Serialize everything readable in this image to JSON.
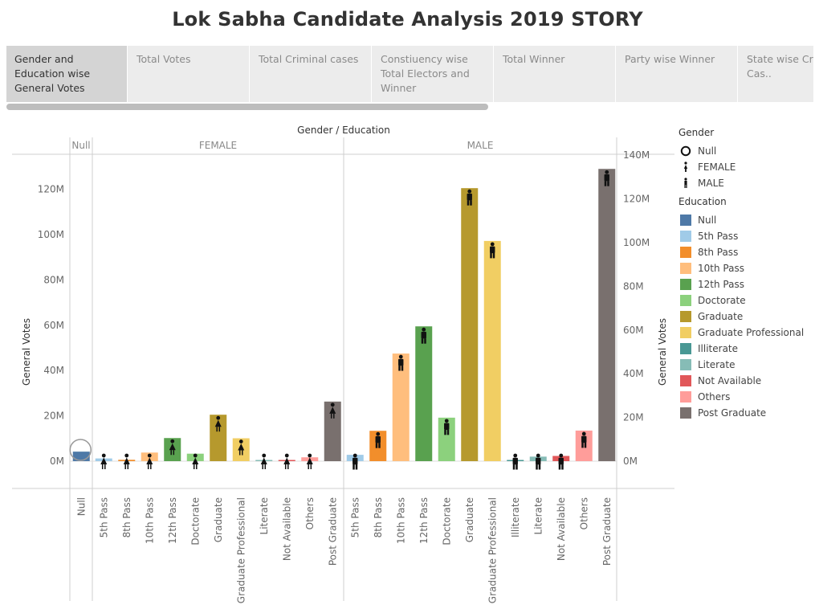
{
  "title": "Lok Sabha Candidate Analysis 2019  STORY",
  "tabs": [
    {
      "label": "Gender and Education wise General Votes",
      "active": true
    },
    {
      "label": "Total Votes",
      "active": false
    },
    {
      "label": "Total Criminal cases",
      "active": false
    },
    {
      "label": "Constiuency wise Total Electors and Winner",
      "active": false
    },
    {
      "label": "Total Winner",
      "active": false
    },
    {
      "label": "Party wise Winner",
      "active": false
    },
    {
      "label": "State wise Criminal Cas..",
      "active": false
    }
  ],
  "legend": {
    "gender_title": "Gender",
    "gender_items": [
      {
        "label": "Null",
        "icon": "circle-icon"
      },
      {
        "label": "FEMALE",
        "icon": "female-icon"
      },
      {
        "label": "MALE",
        "icon": "male-icon"
      }
    ],
    "education_title": "Education",
    "education_items": [
      {
        "label": "Null",
        "color": "#4e79a7"
      },
      {
        "label": "5th Pass",
        "color": "#a0cbe8"
      },
      {
        "label": "8th Pass",
        "color": "#f28e2b"
      },
      {
        "label": "10th Pass",
        "color": "#ffbe7d"
      },
      {
        "label": "12th Pass",
        "color": "#59a14f"
      },
      {
        "label": "Doctorate",
        "color": "#8cd17d"
      },
      {
        "label": "Graduate",
        "color": "#b6992d"
      },
      {
        "label": "Graduate Professional",
        "color": "#f1ce63"
      },
      {
        "label": "Illiterate",
        "color": "#499894"
      },
      {
        "label": "Literate",
        "color": "#86bcb6"
      },
      {
        "label": "Not Available",
        "color": "#e15759"
      },
      {
        "label": "Others",
        "color": "#ff9d9a"
      },
      {
        "label": "Post Graduate",
        "color": "#79706e"
      }
    ]
  },
  "chart_data": {
    "type": "bar",
    "title": "Gender / Education",
    "ylabel": "General Votes",
    "ylabel_right": "General Votes",
    "ylim": [
      0,
      130000000
    ],
    "yticks": [
      0,
      20000000,
      40000000,
      60000000,
      80000000,
      100000000,
      120000000
    ],
    "ytick_labels": [
      "0M",
      "20M",
      "40M",
      "60M",
      "80M",
      "100M",
      "120M"
    ],
    "ylim_right": [
      0,
      140000000
    ],
    "yticks_right": [
      0,
      20000000,
      40000000,
      60000000,
      80000000,
      100000000,
      120000000,
      140000000
    ],
    "ytick_labels_right": [
      "0M",
      "20M",
      "40M",
      "60M",
      "80M",
      "100M",
      "120M",
      "140M"
    ],
    "groups": [
      {
        "name": "Null",
        "icon": "circle",
        "categories": [
          "Null"
        ],
        "values": [
          4200000
        ]
      },
      {
        "name": "FEMALE",
        "icon": "female",
        "categories": [
          "5th Pass",
          "8th Pass",
          "10th Pass",
          "12th Pass",
          "Doctorate",
          "Graduate",
          "Graduate Professional",
          "Literate",
          "Not Available",
          "Others",
          "Post Graduate"
        ],
        "values": [
          1200000,
          600000,
          3800000,
          10200000,
          3300000,
          20500000,
          10100000,
          500000,
          200000,
          1700000,
          26300000
        ]
      },
      {
        "name": "MALE",
        "icon": "male",
        "categories": [
          "5th Pass",
          "8th Pass",
          "10th Pass",
          "12th Pass",
          "Doctorate",
          "Graduate",
          "Graduate Professional",
          "Illiterate",
          "Literate",
          "Not Available",
          "Others",
          "Post Graduate"
        ],
        "values": [
          2800000,
          13400000,
          47500000,
          59500000,
          19200000,
          120500000,
          97200000,
          500000,
          2000000,
          2300000,
          13500000,
          129000000
        ]
      }
    ]
  }
}
